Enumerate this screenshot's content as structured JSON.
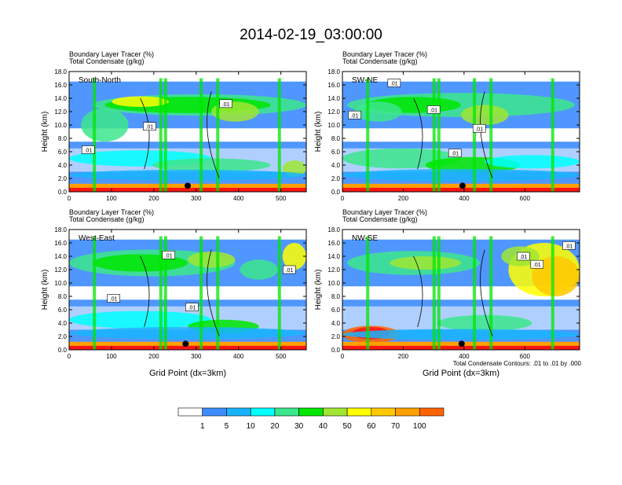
{
  "figure": {
    "title": "2014-02-19_03:00:00",
    "contour_note": "Total Condensate Contours: .01 to .01 by .000"
  },
  "chart_data": [
    {
      "type": "heatmap",
      "panel": "South-North",
      "subtitle_line1": "Boundary Layer Tracer   (%)",
      "subtitle_line2": "Total Condensate   (g/kg)",
      "ylabel": "Height (km)",
      "xlabel": "",
      "xlim": [
        0,
        560
      ],
      "ylim": [
        0,
        18
      ],
      "xticks": [
        0,
        100,
        200,
        300,
        400,
        500
      ],
      "yticks": [
        "0.0",
        "2.0",
        "4.0",
        "6.0",
        "8.0",
        "10.0",
        "12.0",
        "14.0",
        "16.0",
        "18.0"
      ],
      "contour_labels": [
        {
          "text": ".01",
          "x": 370,
          "y": 13.2
        },
        {
          "text": ".01",
          "x": 190,
          "y": 9.8
        },
        {
          "text": ".01",
          "x": 45,
          "y": 6.3
        }
      ],
      "marker": {
        "x": 280,
        "y": 0.9
      }
    },
    {
      "type": "heatmap",
      "panel": "SW-NE",
      "subtitle_line1": "Boundary Layer Tracer   (%)",
      "subtitle_line2": "Total Condensate   (g/kg)",
      "ylabel": "Height (km)",
      "xlabel": "",
      "xlim": [
        0,
        780
      ],
      "ylim": [
        0,
        18
      ],
      "xticks": [
        0,
        200,
        400,
        600
      ],
      "yticks": [
        "0.0",
        "2.0",
        "4.0",
        "6.0",
        "8.0",
        "10.0",
        "12.0",
        "14.0",
        "16.0",
        "18.0"
      ],
      "contour_labels": [
        {
          "text": ".01",
          "x": 40,
          "y": 11.5
        },
        {
          "text": ".01",
          "x": 170,
          "y": 16.3
        },
        {
          "text": ".01",
          "x": 300,
          "y": 12.3
        },
        {
          "text": ".01",
          "x": 450,
          "y": 9.5
        },
        {
          "text": ".01",
          "x": 370,
          "y": 5.8
        }
      ],
      "marker": {
        "x": 395,
        "y": 0.9
      }
    },
    {
      "type": "heatmap",
      "panel": "West-East",
      "subtitle_line1": "Boundary Layer Tracer   (%)",
      "subtitle_line2": "Total Condensate   (g/kg)",
      "ylabel": "Height (km)",
      "xlabel": "Grid Point (dx=3km)",
      "xlim": [
        0,
        560
      ],
      "ylim": [
        0,
        18
      ],
      "xticks": [
        0,
        100,
        200,
        300,
        400,
        500
      ],
      "yticks": [
        "0.0",
        "2.0",
        "4.0",
        "6.0",
        "8.0",
        "10.0",
        "12.0",
        "14.0",
        "16.0",
        "18.0"
      ],
      "contour_labels": [
        {
          "text": ".01",
          "x": 235,
          "y": 14.2
        },
        {
          "text": ".01",
          "x": 105,
          "y": 7.7
        },
        {
          "text": ".01",
          "x": 290,
          "y": 6.4
        },
        {
          "text": ".01",
          "x": 520,
          "y": 12.0
        }
      ],
      "marker": {
        "x": 275,
        "y": 0.9
      }
    },
    {
      "type": "heatmap",
      "panel": "NW-SE",
      "subtitle_line1": "Boundary Layer Tracer   (%)",
      "subtitle_line2": "Total Condensate   (g/kg)",
      "ylabel": "Height (km)",
      "xlabel": "Grid Point (dx=3km)",
      "xlim": [
        0,
        780
      ],
      "ylim": [
        0,
        18
      ],
      "xticks": [
        0,
        200,
        400,
        600
      ],
      "yticks": [
        "0.0",
        "2.0",
        "4.0",
        "6.0",
        "8.0",
        "10.0",
        "12.0",
        "14.0",
        "16.0",
        "18.0"
      ],
      "contour_labels": [
        {
          "text": ".01",
          "x": 595,
          "y": 14.0
        },
        {
          "text": ".01",
          "x": 640,
          "y": 12.8
        },
        {
          "text": ".01",
          "x": 745,
          "y": 15.6
        }
      ],
      "marker": {
        "x": 392,
        "y": 0.9
      }
    }
  ],
  "colorbar": {
    "labels": [
      "1",
      "5",
      "10",
      "20",
      "30",
      "40",
      "50",
      "60",
      "70",
      "100"
    ],
    "colors": [
      "#ffffff",
      "#3c8cff",
      "#19b4ff",
      "#00ffff",
      "#3ce68c",
      "#00e600",
      "#a0e632",
      "#ffff00",
      "#ffc800",
      "#ffa000",
      "#ff6400",
      "#ff1414"
    ]
  }
}
